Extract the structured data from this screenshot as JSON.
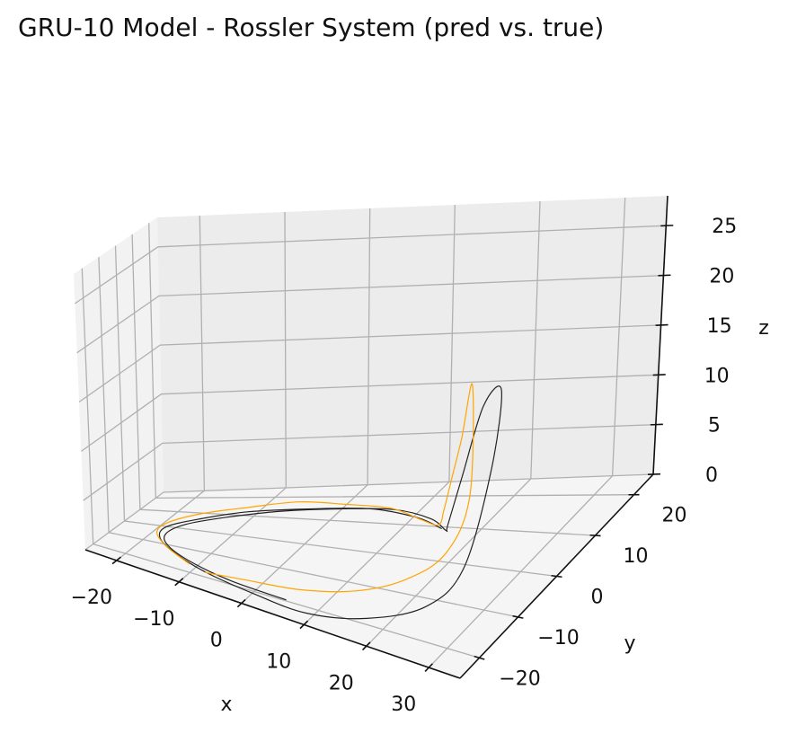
{
  "chart_data": {
    "type": "line3d",
    "title": "GRU-10 Model - Rossler System (pred vs. true)",
    "xlabel": "x",
    "ylabel": "y",
    "zlabel": "z",
    "xlim": [
      -25,
      35
    ],
    "ylim": [
      -25,
      25
    ],
    "zlim": [
      0,
      28
    ],
    "x_ticks": [
      -20,
      -10,
      0,
      10,
      20,
      30
    ],
    "y_ticks": [
      -20,
      -10,
      0,
      10,
      20
    ],
    "z_ticks": [
      0,
      5,
      10,
      15,
      20,
      25
    ],
    "grid": true,
    "colors": {
      "true": "#222222",
      "pred": "#FFA500"
    },
    "series": [
      {
        "key": "true",
        "color": "#222222",
        "points": [
          [
            5,
            -20,
            0.1
          ],
          [
            -4,
            -19,
            0.1
          ],
          [
            -11,
            -16,
            0.1
          ],
          [
            -16,
            -11,
            0.1
          ],
          [
            -18,
            -5,
            0.1
          ],
          [
            -17,
            2,
            0.1
          ],
          [
            -13,
            8,
            0.1
          ],
          [
            -7,
            12,
            0.2
          ],
          [
            0,
            14,
            0.2
          ],
          [
            7,
            14,
            0.3
          ],
          [
            13,
            11,
            0.4
          ],
          [
            17,
            6,
            1.0
          ],
          [
            19,
            2,
            3.0
          ],
          [
            21,
            2,
            8.0
          ],
          [
            22.5,
            5,
            14.0
          ],
          [
            24,
            7,
            15.0
          ],
          [
            25,
            2,
            9.0
          ],
          [
            25,
            -6,
            2.0
          ],
          [
            23,
            -13,
            0.4
          ],
          [
            17,
            -19,
            0.2
          ],
          [
            9,
            -22,
            0.1
          ],
          [
            0,
            -21,
            0.1
          ],
          [
            -8,
            -18.5,
            0.1
          ],
          [
            -14,
            -14,
            0.1
          ],
          [
            -18,
            -8,
            0.1
          ],
          [
            -19,
            -1,
            0.1
          ],
          [
            -16,
            6,
            0.1
          ],
          [
            -11,
            11,
            0.2
          ],
          [
            -4,
            13.5,
            0.2
          ],
          [
            4,
            14,
            0.3
          ],
          [
            11,
            11.5,
            0.3
          ],
          [
            16,
            7,
            0.8
          ]
        ]
      },
      {
        "key": "pred",
        "color": "#FFA500",
        "points": [
          [
            -11,
            -17,
            0.1
          ],
          [
            -16,
            -12,
            0.2
          ],
          [
            -19,
            -6,
            0.3
          ],
          [
            -19,
            0,
            0.4
          ],
          [
            -16,
            6,
            0.6
          ],
          [
            -11,
            10,
            0.8
          ],
          [
            -5,
            13,
            1.0
          ],
          [
            1,
            13.5,
            0.8
          ],
          [
            7,
            13,
            0.7
          ],
          [
            12,
            10,
            0.6
          ],
          [
            16,
            6,
            1.5
          ],
          [
            18,
            3,
            4.0
          ],
          [
            19,
            3,
            7.0
          ],
          [
            20,
            4,
            11.0
          ],
          [
            21,
            5,
            16.0
          ],
          [
            22,
            2,
            6.0
          ],
          [
            21,
            -3,
            2.0
          ],
          [
            18,
            -9,
            1.0
          ],
          [
            13,
            -14,
            0.7
          ],
          [
            6,
            -17,
            0.5
          ],
          [
            -2,
            -18,
            0.3
          ],
          [
            -8,
            -19,
            0.2
          ]
        ]
      }
    ]
  }
}
